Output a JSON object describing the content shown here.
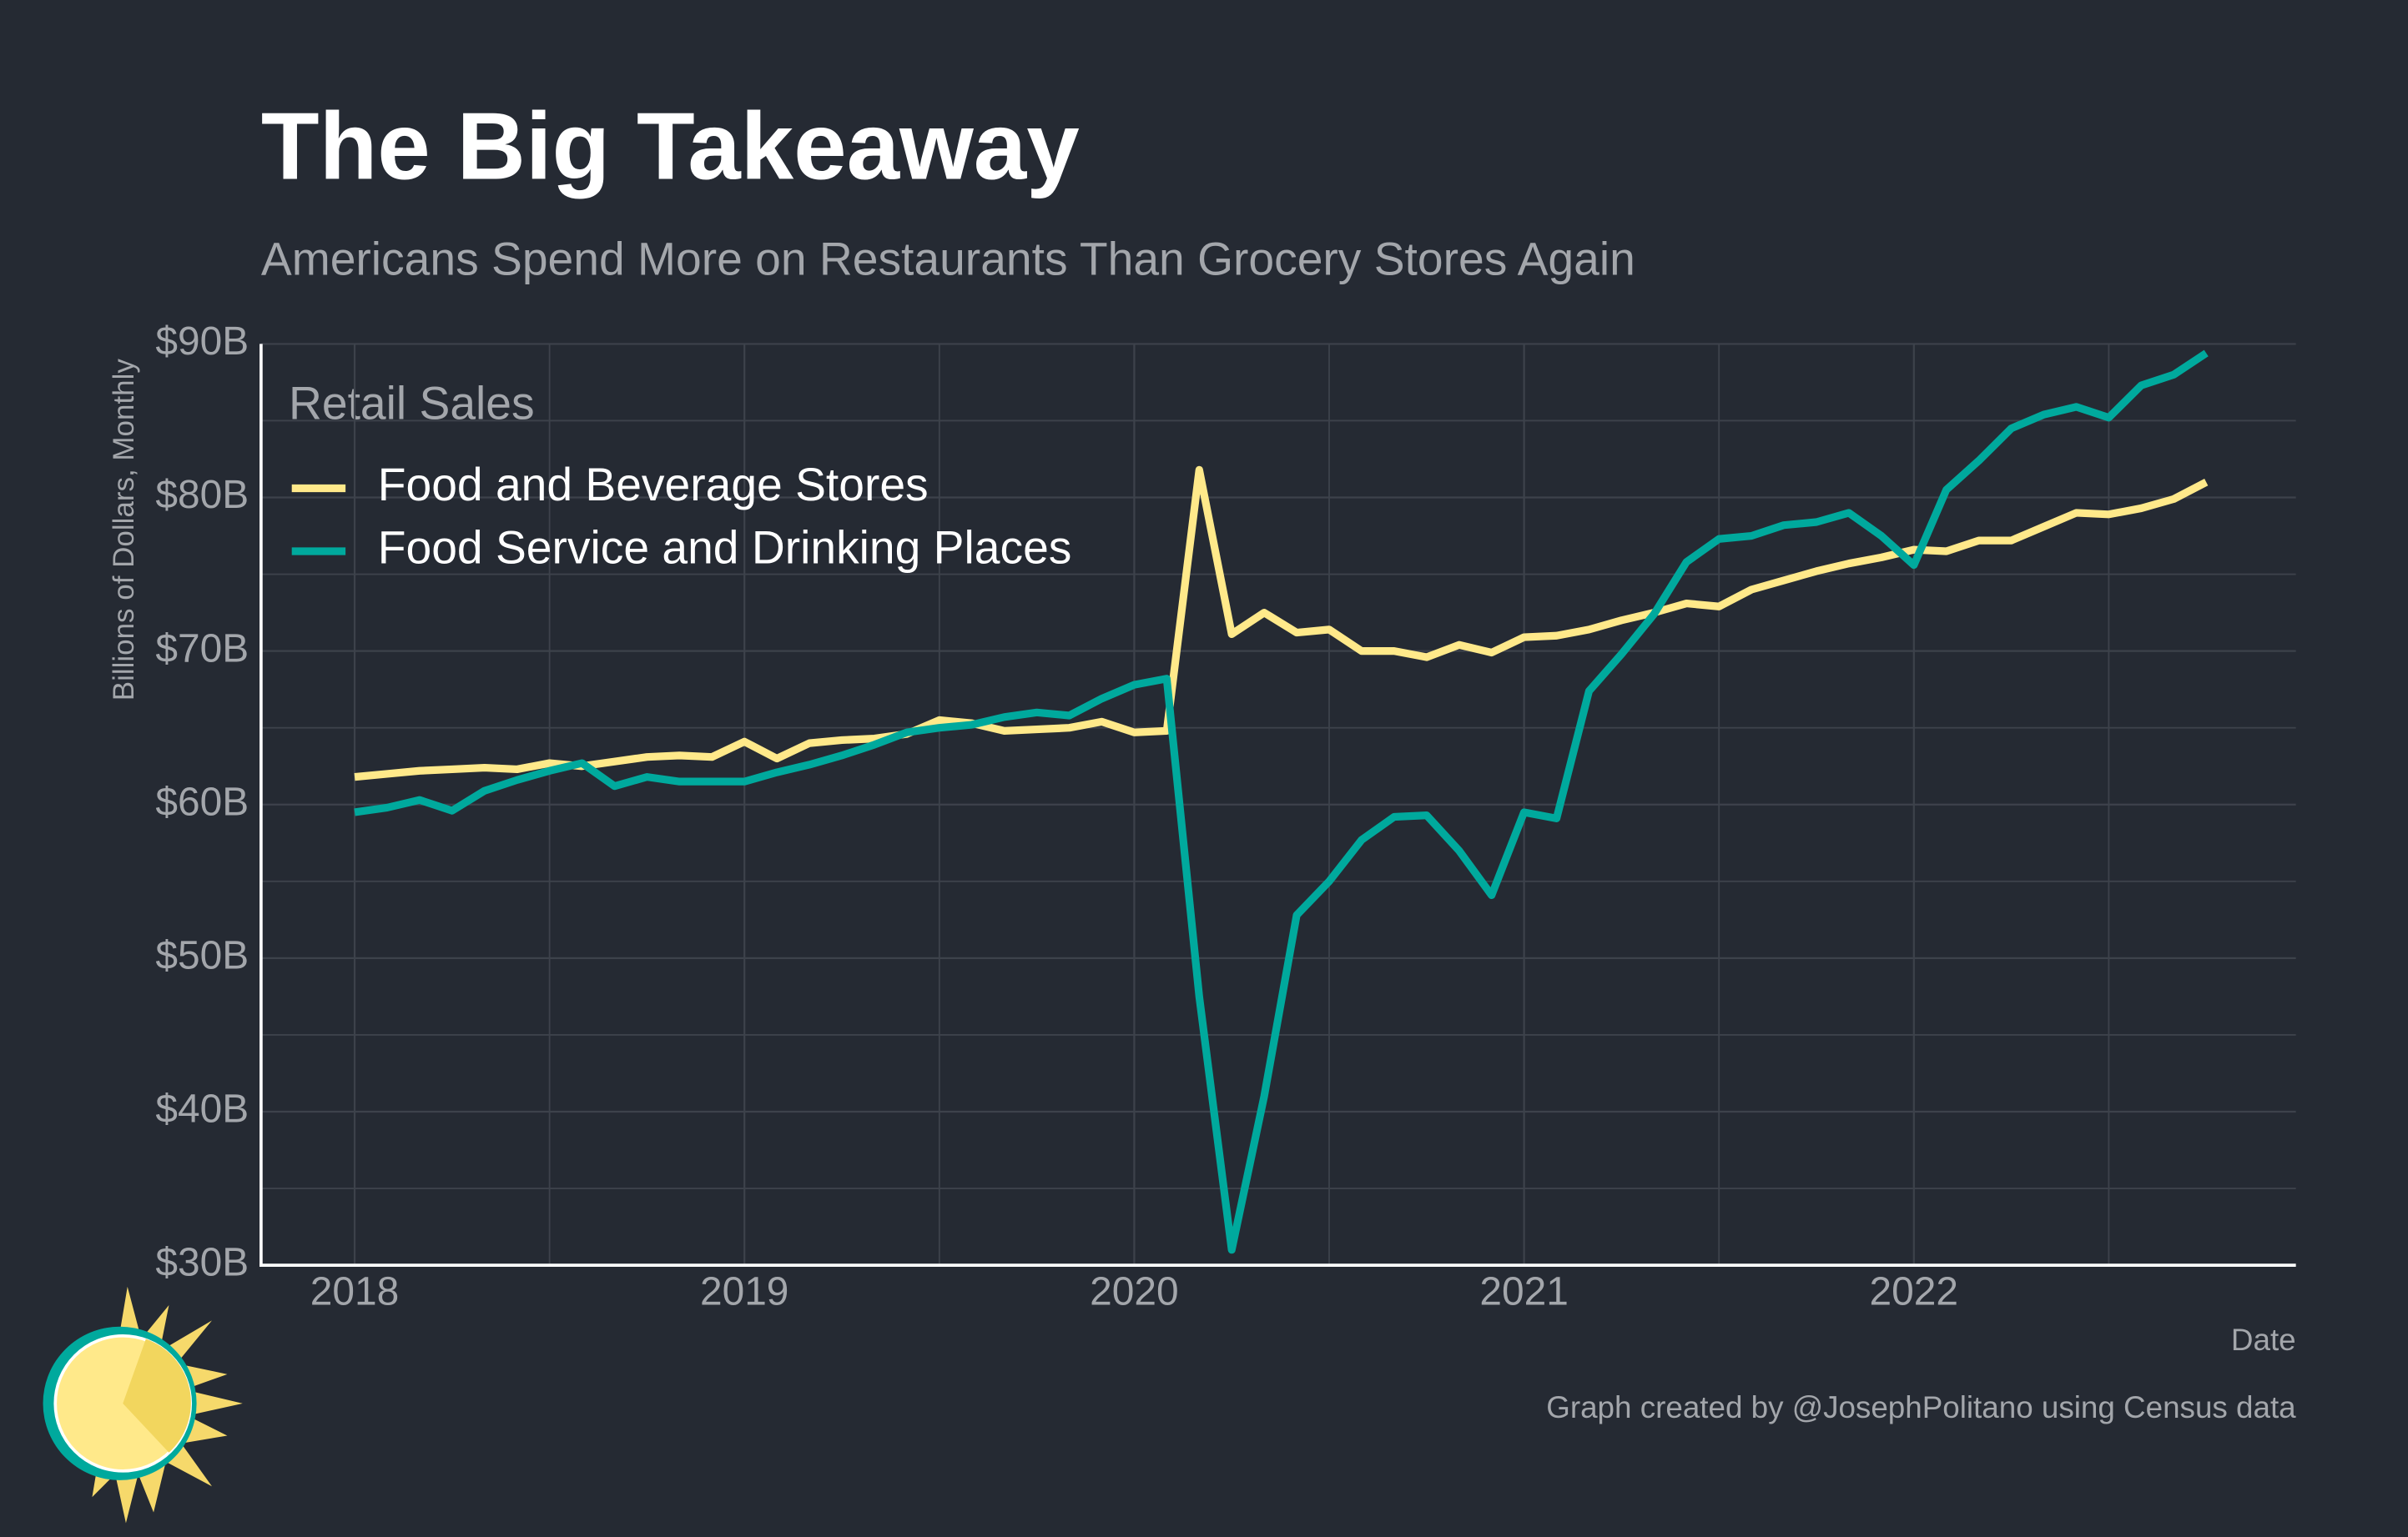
{
  "chart_data": {
    "type": "line",
    "title": "The Big Takeaway",
    "subtitle": "Americans Spend More on Restaurants Than Grocery Stores Again",
    "y_label": "Billions of Dollars, Monthly",
    "x_label": "Date",
    "caption": "Graph created by @JosephPolitano using Census data",
    "legend_title": "Retail Sales",
    "legend": "top-left",
    "grid": true,
    "xlim": [
      2017.76,
      2022.98
    ],
    "xticks": [
      2018,
      2019,
      2020,
      2021,
      2022
    ],
    "x_minor_grid": [
      2018.5,
      2019.5,
      2020.5,
      2021.5,
      2022.5
    ],
    "ylim": [
      30,
      90
    ],
    "yticks": [
      {
        "value": 30,
        "label": "$30B"
      },
      {
        "value": 40,
        "label": "$40B"
      },
      {
        "value": 50,
        "label": "$50B"
      },
      {
        "value": 60,
        "label": "$60B"
      },
      {
        "value": 70,
        "label": "$70B"
      },
      {
        "value": 80,
        "label": "$80B"
      },
      {
        "value": 90,
        "label": "$90B"
      }
    ],
    "y_minor_grid": [
      35,
      45,
      55,
      65,
      75,
      85
    ],
    "x": [
      2018,
      2018.0833,
      2018.1667,
      2018.25,
      2018.3333,
      2018.4167,
      2018.5,
      2018.5833,
      2018.6667,
      2018.75,
      2018.8333,
      2018.9167,
      2019,
      2019.0833,
      2019.1667,
      2019.25,
      2019.3333,
      2019.4167,
      2019.5,
      2019.5833,
      2019.6667,
      2019.75,
      2019.8333,
      2019.9167,
      2020,
      2020.0833,
      2020.1667,
      2020.25,
      2020.3333,
      2020.4167,
      2020.5,
      2020.5833,
      2020.6667,
      2020.75,
      2020.8333,
      2020.9167,
      2021,
      2021.0833,
      2021.1667,
      2021.25,
      2021.3333,
      2021.4167,
      2021.5,
      2021.5833,
      2021.6667,
      2021.75,
      2021.8333,
      2021.9167,
      2022,
      2022.0833,
      2022.1667,
      2022.25,
      2022.3333,
      2022.4167,
      2022.5,
      2022.5833,
      2022.6667,
      2022.75
    ],
    "series": [
      {
        "name": "Food and Beverage Stores",
        "color": "#ffe98a",
        "values": [
          61.8,
          62.0,
          62.2,
          62.3,
          62.4,
          62.3,
          62.7,
          62.5,
          62.8,
          63.1,
          63.2,
          63.1,
          64.1,
          63.0,
          64.0,
          64.2,
          64.3,
          64.6,
          65.5,
          65.3,
          64.8,
          64.9,
          65.0,
          65.4,
          64.7,
          64.8,
          81.8,
          71.1,
          72.5,
          71.2,
          71.4,
          70.0,
          70.0,
          69.6,
          70.4,
          69.9,
          70.9,
          71.0,
          71.4,
          72.0,
          72.5,
          73.1,
          72.9,
          74.0,
          74.6,
          75.2,
          75.7,
          76.1,
          76.6,
          76.5,
          77.2,
          77.2,
          78.1,
          79.0,
          78.9,
          79.3,
          79.9,
          81.0
        ]
      },
      {
        "name": "Food Service and Drinking Places",
        "color": "#00a99d",
        "values": [
          59.5,
          59.8,
          60.3,
          59.6,
          60.9,
          61.6,
          62.2,
          62.7,
          61.2,
          61.8,
          61.5,
          61.5,
          61.5,
          62.1,
          62.6,
          63.2,
          63.9,
          64.7,
          65.0,
          65.2,
          65.7,
          66.0,
          65.8,
          66.9,
          67.8,
          68.2,
          47.5,
          31.0,
          41.0,
          52.8,
          55.0,
          57.7,
          59.2,
          59.3,
          57.0,
          54.1,
          59.5,
          59.1,
          67.4,
          69.8,
          72.4,
          75.8,
          77.3,
          77.5,
          78.2,
          78.4,
          79.0,
          77.5,
          75.6,
          80.5,
          82.4,
          84.5,
          85.4,
          85.9,
          85.2,
          87.3,
          88.0,
          89.4
        ]
      }
    ]
  }
}
